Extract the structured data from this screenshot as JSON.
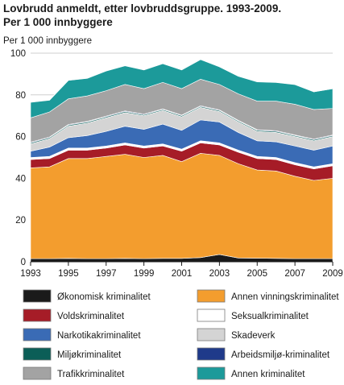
{
  "chart_data": {
    "type": "area",
    "title": "Lovbrudd anmeldt, etter lovbruddsgruppe. 1993-2009.",
    "subtitle": "Per 1 000 innbyggere",
    "ylabel": "Per 1 000 innbyggere",
    "xlabel": "",
    "stacked": true,
    "ylim": [
      0,
      100
    ],
    "yticks": [
      0,
      20,
      40,
      60,
      80,
      100
    ],
    "xticks": [
      1993,
      1995,
      1997,
      1999,
      2001,
      2003,
      2005,
      2007,
      2009
    ],
    "grid": true,
    "legend_position": "bottom",
    "x": [
      1993,
      1994,
      1995,
      1996,
      1997,
      1998,
      1999,
      2000,
      2001,
      2002,
      2003,
      2004,
      2005,
      2006,
      2007,
      2008,
      2009
    ],
    "series": [
      {
        "name": "Økonomisk kriminalitet",
        "color": "#1a1a1a",
        "values": [
          1.5,
          1.5,
          1.6,
          1.5,
          1.5,
          1.6,
          1.5,
          1.6,
          1.6,
          2.0,
          3.5,
          1.8,
          1.7,
          1.6,
          1.5,
          1.5,
          1.5
        ]
      },
      {
        "name": "Annen vinningskriminalitet",
        "color": "#f39d2e",
        "values": [
          43.5,
          44.0,
          47.9,
          48.0,
          49.0,
          49.9,
          48.5,
          49.4,
          46.4,
          50.0,
          47.5,
          45.2,
          42.3,
          41.9,
          39.5,
          37.5,
          38.5
        ]
      },
      {
        "name": "Voldskriminalitet",
        "color": "#a61c27",
        "values": [
          4.0,
          4.0,
          4.0,
          4.0,
          4.0,
          4.5,
          4.5,
          4.5,
          5.0,
          5.0,
          5.0,
          5.5,
          5.5,
          5.5,
          5.5,
          5.5,
          6.0
        ]
      },
      {
        "name": "Seksualkriminalitet",
        "color": "#ffffff",
        "values": [
          1.0,
          1.0,
          1.0,
          1.0,
          1.0,
          1.0,
          1.0,
          1.0,
          1.0,
          1.0,
          1.0,
          1.0,
          1.0,
          1.0,
          1.0,
          1.0,
          1.0
        ]
      },
      {
        "name": "Narkotikakriminalitet",
        "color": "#3a6bb5",
        "values": [
          3.0,
          4.5,
          5.0,
          6.0,
          7.0,
          8.0,
          8.0,
          9.5,
          9.0,
          10.0,
          10.0,
          8.5,
          7.5,
          7.5,
          8.0,
          8.0,
          8.5
        ]
      },
      {
        "name": "Skaderverk",
        "color": "#d4d4d4",
        "values": [
          3.5,
          4.0,
          5.5,
          6.0,
          6.5,
          6.5,
          6.5,
          6.5,
          6.5,
          6.0,
          5.0,
          5.0,
          4.5,
          4.5,
          4.5,
          4.5,
          4.5
        ]
      },
      {
        "name": "Miljøkriminalitet",
        "color": "#0b5e57",
        "values": [
          0.5,
          0.5,
          0.5,
          0.5,
          0.5,
          0.5,
          0.5,
          0.5,
          0.5,
          0.5,
          0.5,
          0.5,
          0.5,
          0.5,
          0.5,
          0.5,
          0.5
        ]
      },
      {
        "name": "Arbeidsmiljø-kriminalitet",
        "color": "#1f3a8a",
        "values": [
          0.3,
          0.3,
          0.3,
          0.3,
          0.3,
          0.3,
          0.3,
          0.3,
          0.3,
          0.3,
          0.3,
          0.3,
          0.3,
          0.3,
          0.3,
          0.3,
          0.3
        ]
      },
      {
        "name": "Trafikkriminalitet",
        "color": "#a3a3a3",
        "values": [
          11.7,
          12.0,
          12.3,
          12.2,
          12.2,
          12.7,
          12.2,
          12.7,
          12.7,
          12.7,
          12.2,
          12.7,
          13.7,
          14.2,
          14.7,
          14.2,
          12.7
        ]
      },
      {
        "name": "Annen kriminalitet",
        "color": "#1c9a9a",
        "values": [
          7.5,
          5.7,
          8.9,
          8.5,
          9.5,
          9.0,
          9.0,
          9.0,
          9.0,
          9.5,
          8.5,
          8.5,
          9.3,
          9.0,
          9.5,
          8.5,
          9.5
        ]
      }
    ],
    "legend": {
      "left": [
        "Økonomisk kriminalitet",
        "Voldskriminalitet",
        "Narkotikakriminalitet",
        "Miljøkriminalitet",
        "Trafikkriminalitet"
      ],
      "right": [
        "Annen vinningskriminalitet",
        "Seksualkriminalitet",
        "Skadeverk",
        "Arbeidsmiljø-kriminalitet",
        "Annen kriminalitet"
      ],
      "left_colors": [
        "#1a1a1a",
        "#a61c27",
        "#3a6bb5",
        "#0b5e57",
        "#a3a3a3"
      ],
      "right_colors": [
        "#f39d2e",
        "#ffffff",
        "#d4d4d4",
        "#1f3a8a",
        "#1c9a9a"
      ]
    }
  }
}
